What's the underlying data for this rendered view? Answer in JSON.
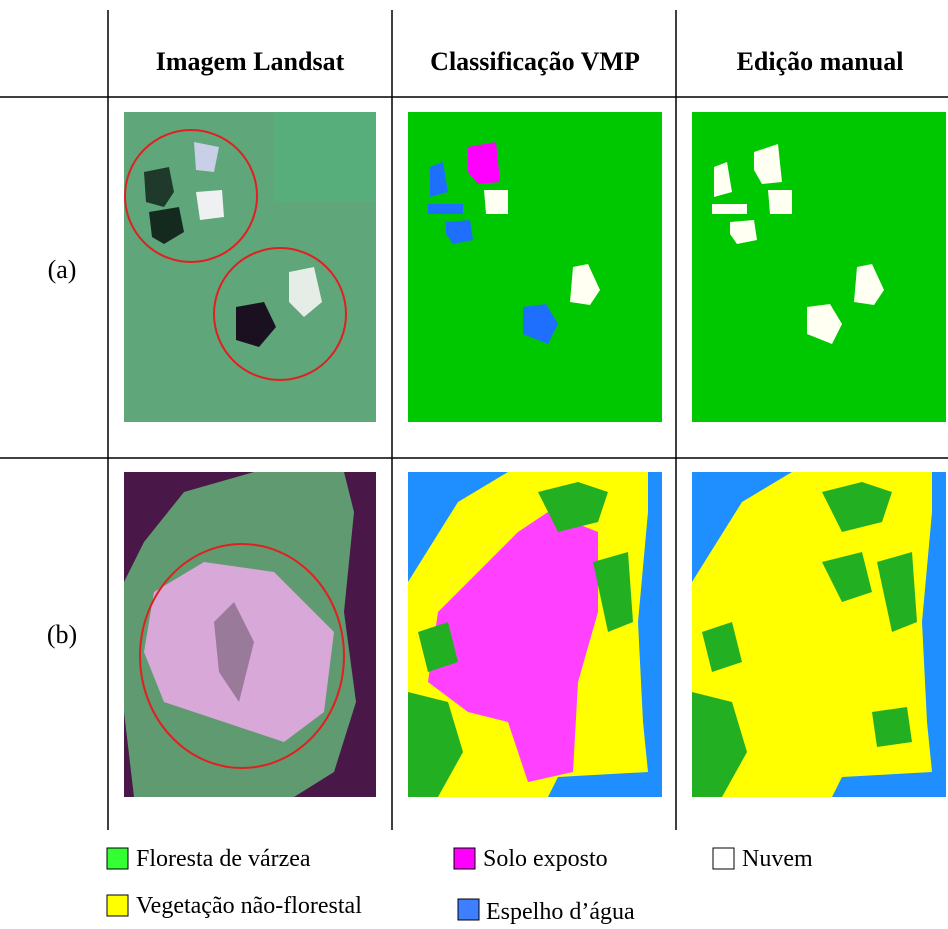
{
  "header": {
    "columns": [
      "Imagem Landsat",
      "Classificação VMP",
      "Edição manual"
    ]
  },
  "rows": [
    {
      "label": "(a)"
    },
    {
      "label": "(b)"
    }
  ],
  "legend": [
    {
      "label": "Floresta de várzea"
    },
    {
      "label": "Solo exposto"
    },
    {
      "label": "Nuvem"
    },
    {
      "label": "Vegetação não-florestal"
    },
    {
      "label": "Espelho d’água"
    }
  ]
}
